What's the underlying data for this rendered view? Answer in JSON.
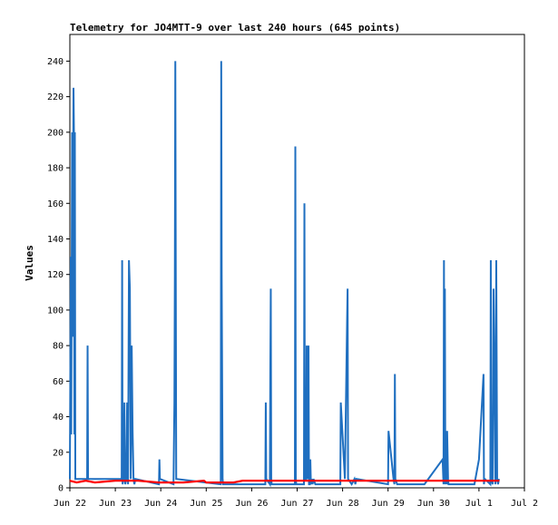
{
  "chart_data": {
    "type": "line",
    "title": "Telemetry for JO4MTT-9 over last 240 hours (645 points)",
    "xlabel": "",
    "ylabel": "Values",
    "ylim": [
      0,
      255
    ],
    "xlim": [
      "Jun 22",
      "Jul 2"
    ],
    "x_ticks": [
      "Jun 22",
      "Jun 23",
      "Jun 24",
      "Jun 25",
      "Jun 26",
      "Jun 27",
      "Jun 28",
      "Jun 29",
      "Jun 30",
      "Jul 1",
      "Jul 2"
    ],
    "y_ticks": [
      0,
      20,
      40,
      60,
      80,
      100,
      120,
      140,
      160,
      180,
      200,
      220,
      240
    ],
    "grid": false,
    "legend": "none",
    "colors": {
      "series_red": "#ff0000",
      "series_blue": "#1f6fc0"
    },
    "series": [
      {
        "color": "#ff0000",
        "x": [
          0.0,
          0.15,
          0.35,
          0.55,
          1.0,
          1.5,
          1.95,
          2.05,
          2.5,
          2.95,
          3.0,
          3.1,
          3.2,
          3.6,
          3.8,
          4.0,
          4.5,
          5.0,
          5.5,
          6.0,
          6.5,
          6.9,
          7.0,
          7.5,
          8.0,
          8.5,
          9.0,
          9.45
        ],
        "y": [
          4,
          3,
          4,
          3,
          4,
          4,
          3,
          3,
          3,
          4,
          3,
          3,
          3,
          3,
          4,
          4,
          4,
          4,
          4,
          4,
          4,
          4,
          4,
          4,
          4,
          4,
          4,
          4
        ]
      },
      {
        "color": "#1f6fc0",
        "x": [
          0.0,
          0.02,
          0.03,
          0.05,
          0.06,
          0.08,
          0.09,
          0.1,
          0.11,
          0.12,
          0.38,
          0.39,
          0.4,
          0.41,
          1.14,
          1.15,
          1.16,
          1.18,
          1.2,
          1.21,
          1.22,
          1.24,
          1.26,
          1.28,
          1.3,
          1.32,
          1.34,
          1.36,
          1.38,
          1.4,
          1.42,
          1.44,
          1.96,
          1.97,
          1.98,
          2.28,
          2.3,
          2.31,
          2.32,
          2.33,
          2.34,
          3.32,
          3.33,
          3.34,
          3.36,
          3.37,
          4.3,
          4.31,
          4.32,
          4.4,
          4.41,
          4.42,
          4.43,
          4.44,
          4.95,
          4.96,
          4.97,
          4.98,
          5.15,
          5.16,
          5.17,
          5.2,
          5.21,
          5.22,
          5.25,
          5.26,
          5.28,
          5.29,
          5.3,
          5.32,
          5.33,
          5.34,
          5.36,
          5.4,
          5.95,
          5.96,
          6.05,
          6.1,
          6.11,
          6.12,
          6.2,
          6.26,
          6.28,
          6.3,
          7.0,
          7.01,
          7.12,
          7.14,
          7.15,
          7.16,
          7.2,
          7.22,
          7.24,
          7.8,
          8.2,
          8.22,
          8.23,
          8.24,
          8.25,
          8.26,
          8.28,
          8.29,
          8.3,
          8.32,
          8.33,
          8.9,
          9.0,
          9.1,
          9.11,
          9.12,
          9.13,
          9.25,
          9.26,
          9.27,
          9.3,
          9.32,
          9.34,
          9.36,
          9.38,
          9.4,
          9.42,
          9.44
        ],
        "y": [
          5,
          130,
          30,
          200,
          85,
          225,
          200,
          30,
          200,
          5,
          5,
          80,
          5,
          5,
          5,
          128,
          2,
          5,
          48,
          5,
          2,
          5,
          48,
          2,
          128,
          112,
          5,
          80,
          32,
          5,
          2,
          5,
          2,
          16,
          5,
          2,
          48,
          120,
          240,
          120,
          5,
          2,
          240,
          120,
          5,
          2,
          2,
          48,
          5,
          2,
          64,
          112,
          5,
          2,
          2,
          192,
          5,
          2,
          2,
          160,
          5,
          5,
          80,
          5,
          80,
          2,
          2,
          16,
          5,
          2,
          5,
          2,
          5,
          2,
          2,
          48,
          5,
          96,
          112,
          5,
          2,
          5,
          2,
          5,
          2,
          32,
          5,
          2,
          64,
          5,
          2,
          2,
          2,
          2,
          16,
          2,
          128,
          2,
          112,
          2,
          32,
          2,
          32,
          5,
          2,
          2,
          16,
          64,
          2,
          5,
          5,
          2,
          128,
          5,
          2,
          112,
          64,
          2,
          128,
          5,
          2,
          5
        ]
      }
    ]
  }
}
